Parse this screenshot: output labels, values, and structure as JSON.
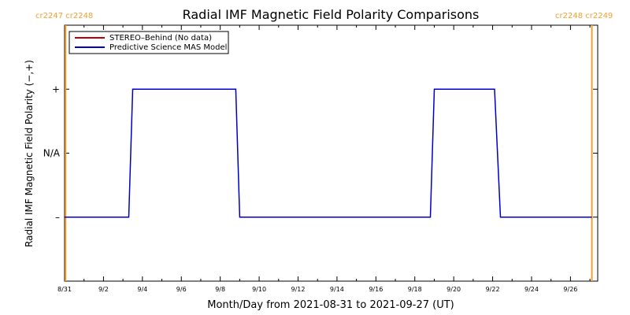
{
  "chart_data": {
    "type": "line",
    "title": "Radial IMF Magnetic Field Polarity Comparisons",
    "xlabel": "Month/Day from 2021-08-31 to 2021-09-27 (UT)",
    "ylabel": "Radial IMF Magnetic Field Polarity (−,+)",
    "x_tick_labels": [
      "8/31",
      "9/2",
      "9/4",
      "9/6",
      "9/8",
      "9/10",
      "9/12",
      "9/14",
      "9/16",
      "9/18",
      "9/20",
      "9/22",
      "9/24",
      "9/26"
    ],
    "xlim": [
      0,
      27.4
    ],
    "y_tick_labels": [
      {
        "label": "+",
        "value": 1
      },
      {
        "label": "N/A",
        "value": 0
      },
      {
        "label": "–",
        "value": -1
      }
    ],
    "ylim": [
      -2,
      2
    ],
    "legend": {
      "position": "top-left",
      "entries": [
        {
          "name": "STEREO–Behind (No data)",
          "color": "#c00000"
        },
        {
          "name": "Predictive Science MAS Model",
          "color": "#0000c8"
        }
      ]
    },
    "series": [
      {
        "name": "Predictive Science MAS Model",
        "color": "#0000c8",
        "points": [
          [
            0.0,
            -1
          ],
          [
            3.3,
            -1
          ],
          [
            3.5,
            1
          ],
          [
            8.8,
            1
          ],
          [
            9.0,
            -1
          ],
          [
            18.8,
            -1
          ],
          [
            19.0,
            1
          ],
          [
            22.1,
            1
          ],
          [
            22.4,
            -1
          ],
          [
            27.1,
            -1
          ]
        ]
      }
    ],
    "carrington_markers": [
      {
        "label": "cr2247 cr2248",
        "x": 0.05,
        "color": "#f0a030"
      },
      {
        "label": "cr2248 cr2249",
        "x": 27.1,
        "color": "#f0a030"
      }
    ]
  }
}
